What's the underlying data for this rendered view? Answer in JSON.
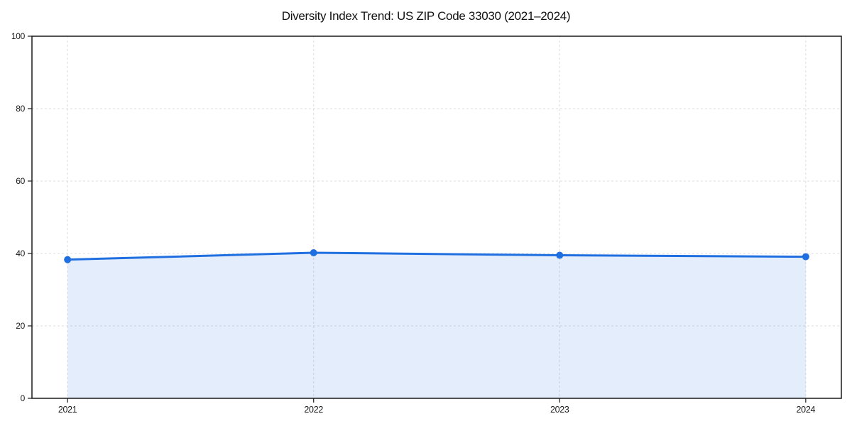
{
  "chart_data": {
    "type": "line",
    "title": "Diversity Index Trend: US ZIP Code 33030 (2021–2024)",
    "x": [
      "2021",
      "2022",
      "2023",
      "2024"
    ],
    "series": [
      {
        "name": "Diversity Index",
        "values": [
          38.3,
          40.2,
          39.5,
          39.1
        ]
      }
    ],
    "xlabel": "",
    "ylabel": "",
    "ylim": [
      0,
      100
    ],
    "yticks": [
      0,
      20,
      40,
      60,
      80,
      100
    ],
    "grid": true,
    "grid_style": "dashed",
    "legend": false,
    "area_fill": true,
    "marker": "circle",
    "colors": {
      "line": "#1f6fe0",
      "marker": "#1f6fe0",
      "fill": "rgba(31,111,224,0.12)",
      "grid": "#dcdcdc",
      "spine": "#1a1a1a",
      "text": "#1a1a1a",
      "background": "#ffffff"
    }
  }
}
